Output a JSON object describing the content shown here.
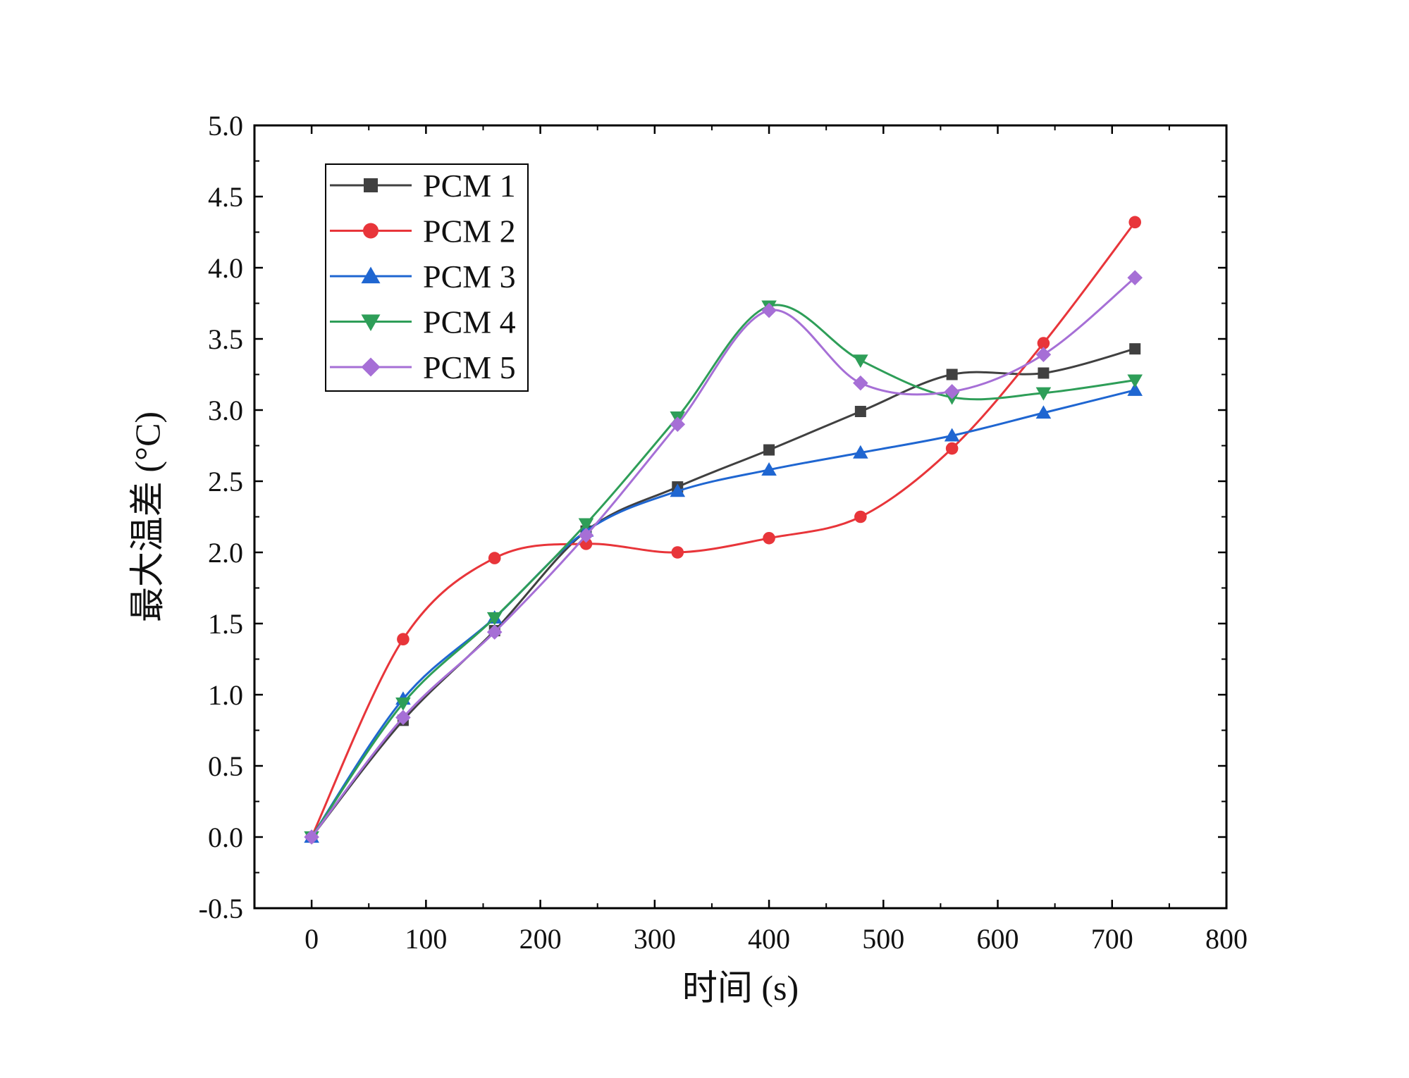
{
  "chart_data": {
    "type": "line",
    "title": "",
    "xlabel": "时间 (s)",
    "ylabel": "最大温差 (°C)",
    "xlim": [
      -50,
      800
    ],
    "ylim": [
      -0.5,
      5.0
    ],
    "xticks": [
      0,
      100,
      200,
      300,
      400,
      500,
      600,
      700,
      800
    ],
    "yticks": [
      -0.5,
      0.0,
      0.5,
      1.0,
      1.5,
      2.0,
      2.5,
      3.0,
      3.5,
      4.0,
      4.5,
      5.0
    ],
    "xtick_labels": [
      "0",
      "100",
      "200",
      "300",
      "400",
      "500",
      "600",
      "700",
      "800"
    ],
    "ytick_labels": [
      "-0.5",
      "0.0",
      "0.5",
      "1.0",
      "1.5",
      "2.0",
      "2.5",
      "3.0",
      "3.5",
      "4.0",
      "4.5",
      "5.0"
    ],
    "grid": false,
    "legend_position": "top-left",
    "x": [
      0,
      80,
      160,
      240,
      320,
      400,
      480,
      560,
      640,
      720
    ],
    "series": [
      {
        "name": "PCM 1",
        "color": "#404040",
        "marker": "square",
        "values": [
          0.0,
          0.82,
          1.45,
          2.15,
          2.46,
          2.72,
          2.99,
          3.25,
          3.26,
          3.43
        ]
      },
      {
        "name": "PCM 2",
        "color": "#e8353a",
        "marker": "circle",
        "values": [
          0.0,
          1.39,
          1.96,
          2.06,
          2.0,
          2.1,
          2.25,
          2.73,
          3.47,
          4.32
        ]
      },
      {
        "name": "PCM 3",
        "color": "#1f66d1",
        "marker": "triangle-up",
        "values": [
          0.0,
          0.97,
          1.54,
          2.15,
          2.43,
          2.58,
          2.7,
          2.82,
          2.98,
          3.14
        ]
      },
      {
        "name": "PCM 4",
        "color": "#2e9e58",
        "marker": "triangle-down",
        "values": [
          0.0,
          0.94,
          1.54,
          2.2,
          2.95,
          3.73,
          3.35,
          3.09,
          3.12,
          3.21
        ]
      },
      {
        "name": "PCM 5",
        "color": "#a66fd6",
        "marker": "diamond",
        "values": [
          0.0,
          0.84,
          1.44,
          2.12,
          2.9,
          3.7,
          3.19,
          3.13,
          3.39,
          3.93
        ]
      }
    ]
  }
}
